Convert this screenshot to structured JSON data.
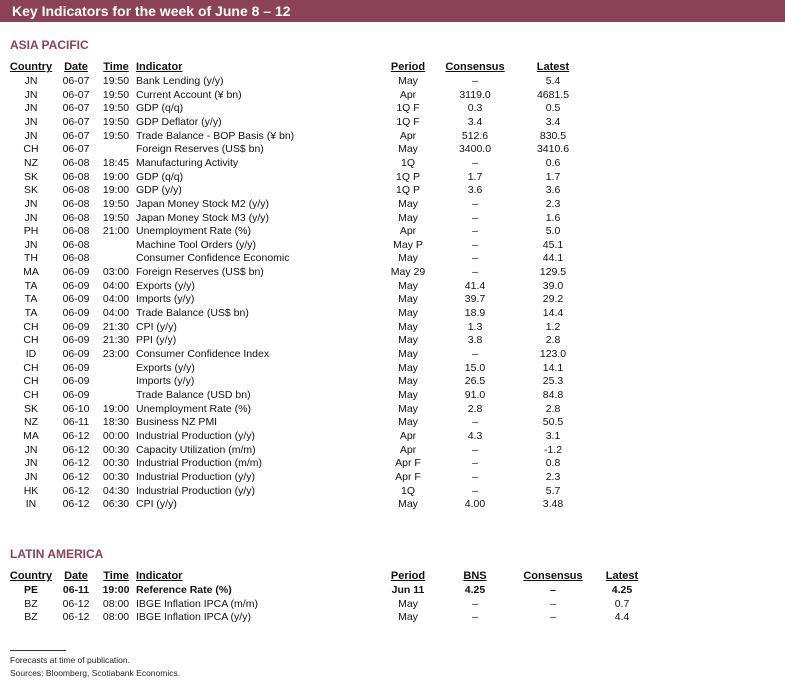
{
  "header": {
    "title": "Key Indicators for the week of June 8 – 12"
  },
  "sections": [
    {
      "title": "ASIA PACIFIC",
      "columns": [
        "Country",
        "Date",
        "Time",
        "Indicator",
        "Period",
        "Consensus",
        "Latest"
      ],
      "rows": [
        [
          "JN",
          "06-07",
          "19:50",
          "Bank Lending (y/y)",
          "May",
          "–",
          "5.4"
        ],
        [
          "JN",
          "06-07",
          "19:50",
          "Current Account (¥ bn)",
          "Apr",
          "3119.0",
          "4681.5"
        ],
        [
          "JN",
          "06-07",
          "19:50",
          "GDP (q/q)",
          "1Q F",
          "0.3",
          "0.5"
        ],
        [
          "JN",
          "06-07",
          "19:50",
          "GDP Deflator (y/y)",
          "1Q F",
          "3.4",
          "3.4"
        ],
        [
          "JN",
          "06-07",
          "19:50",
          "Trade Balance - BOP Basis (¥ bn)",
          "Apr",
          "512.6",
          "830.5"
        ],
        [
          "CH",
          "06-07",
          null,
          "Foreign Reserves (US$ bn)",
          "May",
          "3400.0",
          "3410.6"
        ],
        [
          "NZ",
          "06-08",
          "18:45",
          "Manufacturing Activity",
          "1Q",
          "–",
          "0.6"
        ],
        [
          "SK",
          "06-08",
          "19:00",
          "GDP (q/q)",
          "1Q P",
          "1.7",
          "1.7"
        ],
        [
          "SK",
          "06-08",
          "19:00",
          "GDP (y/y)",
          "1Q P",
          "3.6",
          "3.6"
        ],
        [
          "JN",
          "06-08",
          "19:50",
          "Japan Money Stock M2 (y/y)",
          "May",
          "–",
          "2.3"
        ],
        [
          "JN",
          "06-08",
          "19:50",
          "Japan Money Stock M3 (y/y)",
          "May",
          "–",
          "1.6"
        ],
        [
          "PH",
          "06-08",
          "21:00",
          "Unemployment Rate (%)",
          "Apr",
          "–",
          "5.0"
        ],
        [
          "JN",
          "06-08",
          null,
          "Machine Tool Orders (y/y)",
          "May P",
          "–",
          "45.1"
        ],
        [
          "TH",
          "06-08",
          null,
          "Consumer Confidence Economic",
          "May",
          "–",
          "44.1"
        ],
        [
          "MA",
          "06-09",
          "03:00",
          "Foreign Reserves (US$ bn)",
          "May 29",
          "–",
          "129.5"
        ],
        [
          "TA",
          "06-09",
          "04:00",
          "Exports (y/y)",
          "May",
          "41.4",
          "39.0"
        ],
        [
          "TA",
          "06-09",
          "04:00",
          "Imports (y/y)",
          "May",
          "39.7",
          "29.2"
        ],
        [
          "TA",
          "06-09",
          "04:00",
          "Trade Balance (US$ bn)",
          "May",
          "18.9",
          "14.4"
        ],
        [
          "CH",
          "06-09",
          "21:30",
          "CPI (y/y)",
          "May",
          "1.3",
          "1.2"
        ],
        [
          "CH",
          "06-09",
          "21:30",
          "PPI (y/y)",
          "May",
          "3.8",
          "2.8"
        ],
        [
          "ID",
          "06-09",
          "23:00",
          "Consumer Confidence Index",
          "May",
          "–",
          "123.0"
        ],
        [
          "CH",
          "06-09",
          null,
          "Exports (y/y)",
          "May",
          "15.0",
          "14.1"
        ],
        [
          "CH",
          "06-09",
          null,
          "Imports (y/y)",
          "May",
          "26.5",
          "25.3"
        ],
        [
          "CH",
          "06-09",
          null,
          "Trade Balance (USD bn)",
          "May",
          "91.0",
          "84.8"
        ],
        [
          "SK",
          "06-10",
          "19:00",
          "Unemployment Rate (%)",
          "May",
          "2.8",
          "2.8"
        ],
        [
          "NZ",
          "06-11",
          "18:30",
          "Business NZ PMI",
          "May",
          "–",
          "50.5"
        ],
        [
          "MA",
          "06-12",
          "00:00",
          "Industrial Production (y/y)",
          "Apr",
          "4.3",
          "3.1"
        ],
        [
          "JN",
          "06-12",
          "00:30",
          "Capacity Utilization (m/m)",
          "Apr",
          "–",
          "-1.2"
        ],
        [
          "JN",
          "06-12",
          "00:30",
          "Industrial Production (m/m)",
          "Apr F",
          "–",
          "0.8"
        ],
        [
          "JN",
          "06-12",
          "00:30",
          "Industrial Production (y/y)",
          "Apr F",
          "–",
          "2.3"
        ],
        [
          "HK",
          "06-12",
          "04:30",
          "Industrial Production (y/y)",
          "1Q",
          "–",
          "5.7"
        ],
        [
          "IN",
          "06-12",
          "06:30",
          "CPI (y/y)",
          "May",
          "4.00",
          "3.48"
        ]
      ]
    },
    {
      "title": "LATIN AMERICA",
      "columns": [
        "Country",
        "Date",
        "Time",
        "Indicator",
        "Period",
        "BNS",
        "Consensus",
        "Latest"
      ],
      "rows": [
        [
          "PE",
          "06-11",
          "19:00",
          "Reference Rate (%)",
          "Jun 11",
          "4.25",
          "–",
          "4.25"
        ],
        [
          "BZ",
          "06-12",
          "08:00",
          "IBGE Inflation IPCA (m/m)",
          "May",
          "–",
          "–",
          "0.7"
        ],
        [
          "BZ",
          "06-12",
          "08:00",
          "IBGE Inflation IPCA (y/y)",
          "May",
          "–",
          "–",
          "4.4"
        ]
      ],
      "bold_rows": [
        0
      ]
    }
  ],
  "footnotes": [
    "Forecasts at time of publication.",
    "Sources: Bloomberg, Scotiabank Economics."
  ]
}
